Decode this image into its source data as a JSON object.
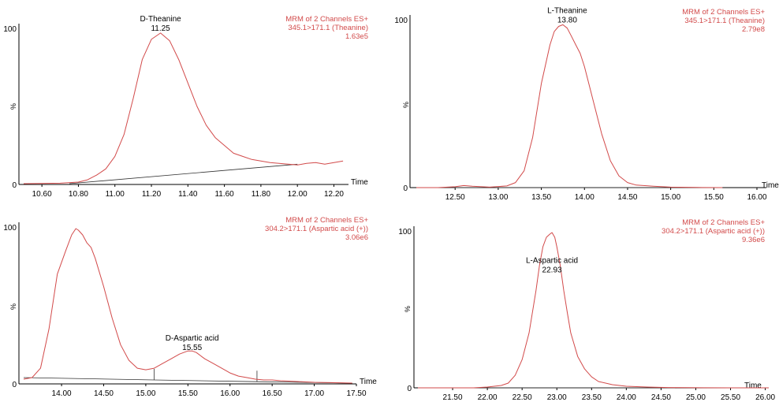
{
  "chart_data": [
    {
      "type": "line",
      "xlabel": "Time",
      "ylabel": "%",
      "xlim": [
        10.5,
        12.28
      ],
      "ylim": [
        0,
        100
      ],
      "xticks": [
        "10.60",
        "10.80",
        "11.00",
        "11.20",
        "11.40",
        "11.60",
        "11.80",
        "12.00",
        "12.20"
      ],
      "xtick_values": [
        10.6,
        10.8,
        11.0,
        11.2,
        11.4,
        11.6,
        11.8,
        12.0,
        12.2
      ],
      "yticks": [
        "0",
        "100"
      ],
      "ytick_values": [
        0,
        100
      ],
      "header": [
        "MRM of 2 Channels ES+",
        "345.1>171.1 (Theanine)",
        "1.63e5"
      ],
      "peak_label": {
        "name": "D-Theanine",
        "time": "11.25",
        "x": 11.25,
        "y": 97
      },
      "baseline": [
        [
          10.75,
          0.5
        ],
        [
          12.0,
          13
        ]
      ],
      "baseline_ticks": [],
      "series": [
        {
          "x": [
            10.5,
            10.7,
            10.8,
            10.85,
            10.9,
            10.95,
            11.0,
            11.05,
            11.1,
            11.15,
            11.2,
            11.25,
            11.3,
            11.35,
            11.4,
            11.45,
            11.5,
            11.55,
            11.6,
            11.65,
            11.7,
            11.75,
            11.8,
            11.85,
            11.9,
            11.95,
            12.0,
            12.05,
            12.1,
            12.15,
            12.2,
            12.25
          ],
          "y": [
            0.5,
            0.8,
            1.5,
            3,
            6,
            10,
            18,
            32,
            55,
            80,
            93,
            97,
            92,
            80,
            65,
            50,
            38,
            30,
            25,
            20,
            18,
            16,
            15,
            14,
            13.5,
            13,
            12.5,
            13.5,
            14,
            13,
            14,
            15
          ]
        }
      ]
    },
    {
      "type": "line",
      "xlabel": "Time",
      "ylabel": "%",
      "xlim": [
        12.05,
        16.0
      ],
      "ylim": [
        0,
        100
      ],
      "xticks": [
        "12.50",
        "13.00",
        "13.50",
        "14.00",
        "14.50",
        "15.00",
        "15.50",
        "16.00"
      ],
      "xtick_values": [
        12.5,
        13.0,
        13.5,
        14.0,
        14.5,
        15.0,
        15.5,
        16.0
      ],
      "yticks": [
        "0",
        "100"
      ],
      "ytick_values": [
        0,
        100
      ],
      "header": [
        "MRM of 2 Channels ES+",
        "345.1>171.1 (Theanine)",
        "2.79e8"
      ],
      "peak_label": {
        "name": "L-Theanine",
        "time": "13.80",
        "x": 13.8,
        "y": 97
      },
      "baseline": [
        [
          12.05,
          0
        ],
        [
          15.6,
          0
        ]
      ],
      "baseline_ticks": [],
      "series": [
        {
          "x": [
            12.05,
            12.3,
            12.5,
            12.6,
            12.7,
            12.9,
            13.1,
            13.2,
            13.3,
            13.4,
            13.5,
            13.6,
            13.65,
            13.7,
            13.75,
            13.8,
            13.85,
            13.9,
            13.95,
            14.0,
            14.1,
            14.2,
            14.3,
            14.4,
            14.5,
            14.6,
            14.8,
            15.0,
            15.3,
            15.6
          ],
          "y": [
            0,
            0,
            0.5,
            1.2,
            0.8,
            0.3,
            1,
            3,
            10,
            30,
            62,
            85,
            93,
            96,
            97,
            95,
            90,
            85,
            80,
            72,
            52,
            32,
            16,
            7,
            3,
            1.5,
            0.8,
            0.3,
            0.1,
            0
          ]
        }
      ]
    },
    {
      "type": "line",
      "xlabel": "Time",
      "ylabel": "%",
      "xlim": [
        13.55,
        17.5
      ],
      "ylim": [
        0,
        100
      ],
      "xticks": [
        "14.00",
        "14.50",
        "15.00",
        "15.50",
        "16.00",
        "16.50",
        "17.00",
        "17.50"
      ],
      "xtick_values": [
        14.0,
        14.5,
        15.0,
        15.5,
        16.0,
        16.5,
        17.0,
        17.5
      ],
      "yticks": [
        "0",
        "100"
      ],
      "ytick_values": [
        0,
        100
      ],
      "header": [
        "MRM of 2 Channels ES+",
        "304.2>171.1 (Aspartic acid (+))",
        "3.06e6"
      ],
      "peak_label": {
        "name": "D-Aspartic acid",
        "time": "15.55",
        "x": 15.55,
        "y": 20
      },
      "baseline": [
        [
          13.55,
          4
        ],
        [
          15.1,
          2.5
        ],
        [
          16.32,
          1.4
        ],
        [
          17.45,
          0.5
        ]
      ],
      "baseline_ticks": [
        15.1,
        16.32
      ],
      "series": [
        {
          "x": [
            13.55,
            13.65,
            13.75,
            13.85,
            13.95,
            14.05,
            14.12,
            14.17,
            14.2,
            14.25,
            14.3,
            14.35,
            14.4,
            14.5,
            14.6,
            14.7,
            14.8,
            14.9,
            15.0,
            15.1,
            15.2,
            15.3,
            15.4,
            15.5,
            15.55,
            15.6,
            15.7,
            15.8,
            15.9,
            16.0,
            16.1,
            16.2,
            16.3,
            16.4,
            16.5,
            16.6,
            16.8,
            17.0,
            17.2,
            17.45
          ],
          "y": [
            3,
            4,
            10,
            35,
            70,
            85,
            95,
            99,
            98,
            95,
            90,
            87,
            80,
            62,
            42,
            25,
            15,
            10,
            9,
            10,
            13,
            16,
            19,
            21,
            21,
            20,
            16,
            13,
            10,
            7,
            5,
            4,
            3,
            2.5,
            2.5,
            2,
            1.5,
            1,
            0.8,
            0.5
          ]
        }
      ]
    },
    {
      "type": "line",
      "xlabel": "Time",
      "ylabel": "%",
      "xlim": [
        21.0,
        26.05
      ],
      "ylim": [
        0,
        100
      ],
      "xticks": [
        "21.50",
        "22.00",
        "22.50",
        "23.00",
        "23.50",
        "24.00",
        "24.50",
        "25.00",
        "25.50",
        "26.00"
      ],
      "xtick_values": [
        21.5,
        22.0,
        22.5,
        23.0,
        23.5,
        24.0,
        24.5,
        25.0,
        25.5,
        26.0
      ],
      "yticks": [
        "0",
        "100"
      ],
      "ytick_values": [
        0,
        100
      ],
      "header": [
        "MRM of 2 Channels ES+",
        "304.2>171.1 (Aspartic acid (+))",
        "9.36e6"
      ],
      "peak_label": {
        "name": "L-Aspartic acid",
        "time": "22.93",
        "x": 22.93,
        "y": 72
      },
      "baseline": [
        [
          21.0,
          0
        ],
        [
          24.7,
          0
        ]
      ],
      "baseline_ticks": [],
      "series": [
        {
          "x": [
            21.0,
            21.8,
            22.0,
            22.2,
            22.3,
            22.4,
            22.5,
            22.6,
            22.7,
            22.75,
            22.8,
            22.85,
            22.9,
            22.93,
            22.97,
            23.0,
            23.05,
            23.1,
            23.15,
            23.2,
            23.3,
            23.4,
            23.5,
            23.6,
            23.8,
            24.0,
            24.3,
            24.6,
            24.9,
            25.5,
            26.05
          ],
          "y": [
            0,
            0,
            0.5,
            1.5,
            3,
            8,
            18,
            35,
            62,
            78,
            90,
            96,
            98,
            99,
            96,
            90,
            78,
            62,
            48,
            35,
            20,
            12,
            7,
            4,
            2,
            1,
            0.5,
            0.2,
            0.1,
            0,
            0
          ]
        }
      ]
    }
  ]
}
